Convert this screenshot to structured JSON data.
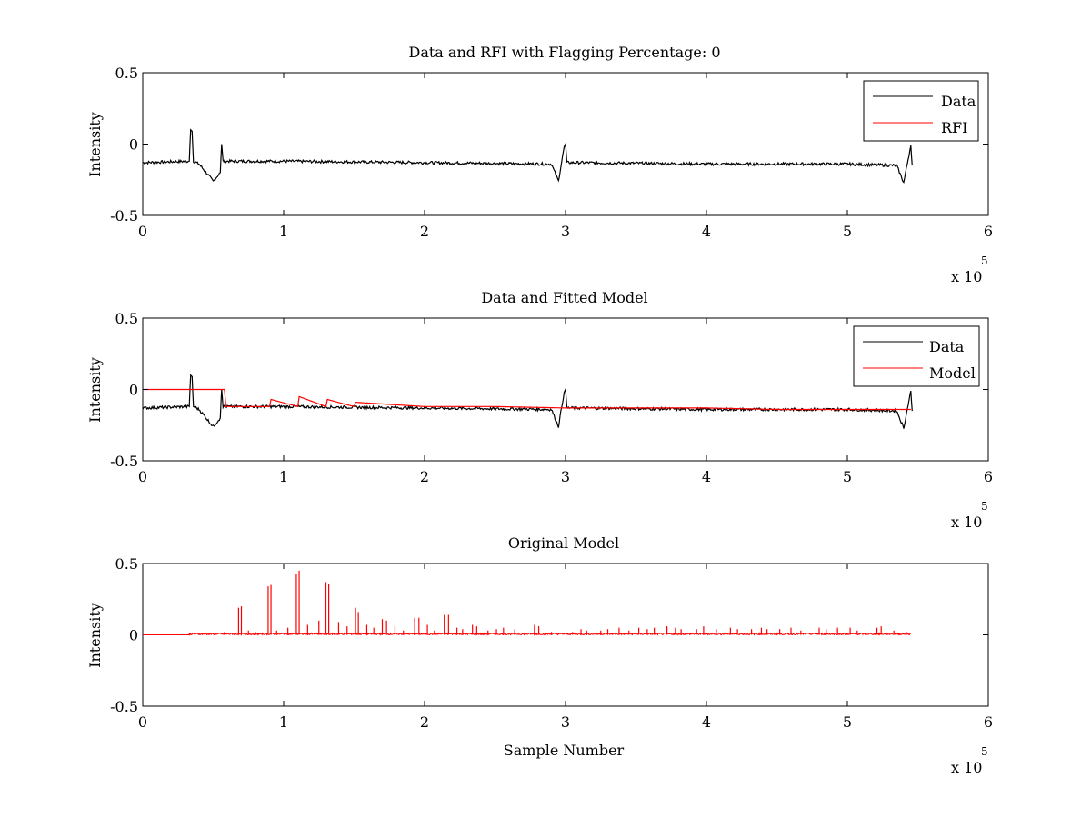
{
  "chart_data": [
    {
      "type": "line",
      "title": "Data and RFI with Flagging Percentage: 0",
      "xlabel": "",
      "ylabel": "Intensity",
      "xlim": [
        0,
        6
      ],
      "ylim": [
        -0.5,
        0.5
      ],
      "x_ticks": [
        "0",
        "1",
        "2",
        "3",
        "4",
        "5",
        "6"
      ],
      "y_ticks": [
        "-0.5",
        "0",
        "0.5"
      ],
      "x_multiplier": {
        "base": "x 10",
        "exponent": "5"
      },
      "legend": {
        "position": "top-right",
        "entries": [
          {
            "name": "Data",
            "color": "#000000"
          },
          {
            "name": "RFI",
            "color": "#ff0000"
          }
        ]
      },
      "series": [
        {
          "name": "Data",
          "color": "#000000",
          "x": [
            0,
            0.33,
            0.34,
            0.35,
            0.36,
            0.4,
            0.5,
            0.55,
            0.56,
            0.57,
            1.0,
            2.0,
            2.9,
            2.95,
            2.99,
            3.0,
            3.01,
            3.1,
            4.0,
            5.0,
            5.35,
            5.4,
            5.45,
            5.46
          ],
          "y": [
            -0.13,
            -0.12,
            0.1,
            0.09,
            -0.12,
            -0.14,
            -0.26,
            -0.2,
            0.0,
            -0.12,
            -0.12,
            -0.13,
            -0.14,
            -0.26,
            -0.02,
            0.0,
            -0.13,
            -0.13,
            -0.14,
            -0.14,
            -0.15,
            -0.27,
            -0.01,
            -0.15
          ]
        },
        {
          "name": "RFI",
          "color": "#ff0000",
          "x": [],
          "y": []
        }
      ]
    },
    {
      "type": "line",
      "title": "Data and Fitted Model",
      "xlabel": "",
      "ylabel": "Intensity",
      "xlim": [
        0,
        6
      ],
      "ylim": [
        -0.5,
        0.5
      ],
      "x_ticks": [
        "0",
        "1",
        "2",
        "3",
        "4",
        "5",
        "6"
      ],
      "y_ticks": [
        "-0.5",
        "0",
        "0.5"
      ],
      "x_multiplier": {
        "base": "x 10",
        "exponent": "5"
      },
      "legend": {
        "position": "top-right",
        "entries": [
          {
            "name": "Data",
            "color": "#000000"
          },
          {
            "name": "Model",
            "color": "#ff0000"
          }
        ]
      },
      "series": [
        {
          "name": "Data",
          "color": "#000000",
          "x": [
            0,
            0.33,
            0.34,
            0.35,
            0.36,
            0.4,
            0.5,
            0.55,
            0.56,
            0.57,
            1.0,
            2.0,
            2.9,
            2.95,
            2.99,
            3.0,
            3.01,
            3.1,
            4.0,
            5.0,
            5.35,
            5.4,
            5.45,
            5.46
          ],
          "y": [
            -0.13,
            -0.12,
            0.1,
            0.09,
            -0.12,
            -0.14,
            -0.26,
            -0.2,
            0.0,
            -0.12,
            -0.12,
            -0.13,
            -0.14,
            -0.26,
            -0.02,
            0.0,
            -0.13,
            -0.13,
            -0.14,
            -0.14,
            -0.15,
            -0.27,
            -0.01,
            -0.15
          ]
        },
        {
          "name": "Model",
          "color": "#ff0000",
          "x": [
            0,
            0.58,
            0.59,
            0.9,
            0.91,
            1.1,
            1.11,
            1.3,
            1.31,
            1.5,
            1.51,
            2.0,
            2.5,
            3.0,
            3.5,
            4.0,
            4.5,
            5.0,
            5.45
          ],
          "y": [
            0.0,
            0.0,
            -0.12,
            -0.12,
            -0.07,
            -0.12,
            -0.05,
            -0.12,
            -0.07,
            -0.12,
            -0.09,
            -0.12,
            -0.12,
            -0.13,
            -0.13,
            -0.13,
            -0.14,
            -0.14,
            -0.14
          ]
        }
      ]
    },
    {
      "type": "line",
      "title": "Original Model",
      "xlabel": "Sample Number",
      "ylabel": "Intensity",
      "xlim": [
        0,
        6
      ],
      "ylim": [
        -0.5,
        0.5
      ],
      "x_ticks": [
        "0",
        "1",
        "2",
        "3",
        "4",
        "5",
        "6"
      ],
      "y_ticks": [
        "-0.5",
        "0",
        "0.5"
      ],
      "x_multiplier": {
        "base": "x 10",
        "exponent": "5"
      },
      "series": [
        {
          "name": "",
          "color": "#ff0000",
          "spikes_x": [
            0.34,
            0.4,
            0.58,
            0.68,
            0.7,
            0.75,
            0.8,
            0.89,
            0.91,
            0.95,
            1.03,
            1.09,
            1.11,
            1.17,
            1.25,
            1.3,
            1.32,
            1.39,
            1.45,
            1.51,
            1.53,
            1.59,
            1.64,
            1.7,
            1.73,
            1.79,
            1.85,
            1.93,
            1.96,
            2.02,
            2.07,
            2.14,
            2.17,
            2.23,
            2.27,
            2.34,
            2.37,
            2.45,
            2.51,
            2.56,
            2.64,
            2.78,
            2.81,
            2.9,
            3.05,
            3.11,
            3.15,
            3.25,
            3.3,
            3.38,
            3.45,
            3.52,
            3.58,
            3.63,
            3.72,
            3.78,
            3.82,
            3.93,
            3.98,
            4.07,
            4.17,
            4.22,
            4.32,
            4.39,
            4.43,
            4.52,
            4.6,
            4.67,
            4.8,
            4.85,
            4.93,
            5.02,
            5.07,
            5.21,
            5.24,
            5.33,
            5.42
          ],
          "spikes_y": [
            0.01,
            0.01,
            0.02,
            0.19,
            0.2,
            0.03,
            0.02,
            0.34,
            0.35,
            0.03,
            0.05,
            0.43,
            0.45,
            0.07,
            0.1,
            0.37,
            0.36,
            0.09,
            0.06,
            0.19,
            0.16,
            0.07,
            0.05,
            0.11,
            0.1,
            0.06,
            0.03,
            0.12,
            0.12,
            0.07,
            0.03,
            0.14,
            0.14,
            0.05,
            0.04,
            0.07,
            0.06,
            0.03,
            0.04,
            0.05,
            0.04,
            0.07,
            0.06,
            0.02,
            0.02,
            0.04,
            0.03,
            0.03,
            0.04,
            0.05,
            0.03,
            0.05,
            0.04,
            0.05,
            0.06,
            0.05,
            0.04,
            0.04,
            0.06,
            0.04,
            0.05,
            0.04,
            0.04,
            0.05,
            0.04,
            0.04,
            0.05,
            0.03,
            0.05,
            0.04,
            0.05,
            0.05,
            0.03,
            0.05,
            0.06,
            0.03,
            0.02
          ],
          "baseline_y": 0.0,
          "x_range": [
            0,
            5.45
          ]
        }
      ]
    }
  ]
}
